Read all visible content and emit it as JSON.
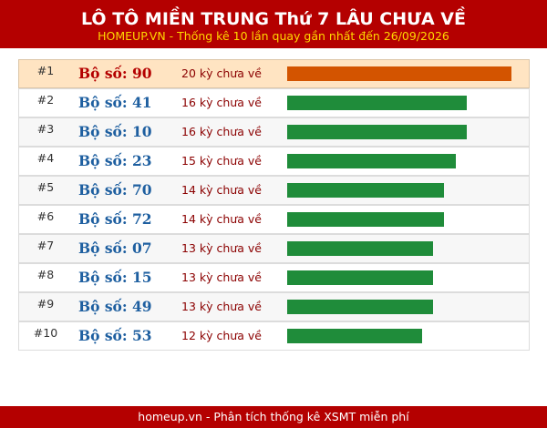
{
  "header": {
    "title": "LÔ TÔ MIỀN TRUNG Thứ 7 LÂU CHƯA VỀ",
    "subtitle": "HOMEUP.VN - Thống kê 10 lần quay gần nhất đến 26/09/2026"
  },
  "footer": {
    "text": "homeup.vn - Phân tích thống kê XSMT miễn phí"
  },
  "colors": {
    "header_bg": "#b40000",
    "subtitle": "#ffd700",
    "top_bar": "#d35400",
    "bar": "#1f8c3a",
    "top_row_bg": "#ffe4c2"
  },
  "chart_data": {
    "type": "bar",
    "orientation": "horizontal",
    "title": "LÔ TÔ MIỀN TRUNG Thứ 7 LÂU CHƯA VỀ",
    "subtitle": "HOMEUP.VN - Thống kê 10 lần quay gần nhất đến 26/09/2026",
    "xlim": [
      0,
      20
    ],
    "grid": false,
    "legend": "none",
    "rows": [
      {
        "rank": "#1",
        "label": "Bộ số: 90",
        "value": 20,
        "value_text": "20 kỳ chưa về"
      },
      {
        "rank": "#2",
        "label": "Bộ số: 41",
        "value": 16,
        "value_text": "16 kỳ chưa về"
      },
      {
        "rank": "#3",
        "label": "Bộ số: 10",
        "value": 16,
        "value_text": "16 kỳ chưa về"
      },
      {
        "rank": "#4",
        "label": "Bộ số: 23",
        "value": 15,
        "value_text": "15 kỳ chưa về"
      },
      {
        "rank": "#5",
        "label": "Bộ số: 70",
        "value": 14,
        "value_text": "14 kỳ chưa về"
      },
      {
        "rank": "#6",
        "label": "Bộ số: 72",
        "value": 14,
        "value_text": "14 kỳ chưa về"
      },
      {
        "rank": "#7",
        "label": "Bộ số: 07",
        "value": 13,
        "value_text": "13 kỳ chưa về"
      },
      {
        "rank": "#8",
        "label": "Bộ số: 15",
        "value": 13,
        "value_text": "13 kỳ chưa về"
      },
      {
        "rank": "#9",
        "label": "Bộ số: 49",
        "value": 13,
        "value_text": "13 kỳ chưa về"
      },
      {
        "rank": "#10",
        "label": "Bộ số: 53",
        "value": 12,
        "value_text": "12 kỳ chưa về"
      }
    ]
  }
}
